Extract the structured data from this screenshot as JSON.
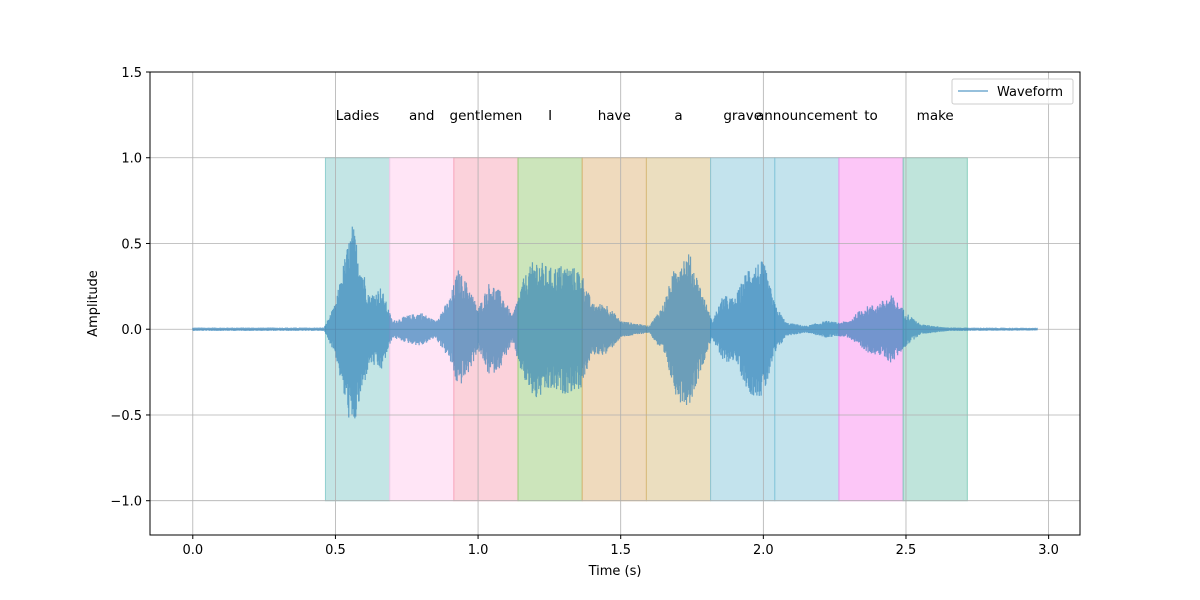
{
  "chart_data": {
    "type": "line",
    "xlabel": "Time (s)",
    "ylabel": "Amplitude",
    "xlim": [
      -0.15,
      3.11
    ],
    "ylim": [
      -1.2,
      1.5
    ],
    "xticks": [
      {
        "value": 0.0,
        "label": "0.0"
      },
      {
        "value": 0.5,
        "label": "0.5"
      },
      {
        "value": 1.0,
        "label": "1.0"
      },
      {
        "value": 1.5,
        "label": "1.5"
      },
      {
        "value": 2.0,
        "label": "2.0"
      },
      {
        "value": 2.5,
        "label": "2.5"
      },
      {
        "value": 3.0,
        "label": "3.0"
      }
    ],
    "yticks": [
      {
        "value": -1.0,
        "label": "−1.0"
      },
      {
        "value": -0.5,
        "label": "−0.5"
      },
      {
        "value": 0.0,
        "label": "0.0"
      },
      {
        "value": 0.5,
        "label": "0.5"
      },
      {
        "value": 1.0,
        "label": "1.0"
      },
      {
        "value": 1.5,
        "label": "1.5"
      }
    ],
    "grid": true,
    "legend": {
      "placement": "upper right",
      "entries": [
        "Waveform"
      ]
    },
    "waveform": {
      "name": "Waveform",
      "color": "#1f77b4",
      "duration": 2.96,
      "envelope": [
        [
          0.0,
          0.01
        ],
        [
          0.46,
          0.01
        ],
        [
          0.5,
          0.15
        ],
        [
          0.53,
          0.4
        ],
        [
          0.56,
          0.62
        ],
        [
          0.59,
          0.4
        ],
        [
          0.62,
          0.2
        ],
        [
          0.66,
          0.25
        ],
        [
          0.7,
          0.05
        ],
        [
          0.75,
          0.08
        ],
        [
          0.8,
          0.1
        ],
        [
          0.85,
          0.05
        ],
        [
          0.9,
          0.18
        ],
        [
          0.93,
          0.35
        ],
        [
          0.97,
          0.25
        ],
        [
          1.0,
          0.12
        ],
        [
          1.04,
          0.28
        ],
        [
          1.08,
          0.22
        ],
        [
          1.12,
          0.08
        ],
        [
          1.16,
          0.3
        ],
        [
          1.2,
          0.42
        ],
        [
          1.25,
          0.36
        ],
        [
          1.3,
          0.38
        ],
        [
          1.36,
          0.35
        ],
        [
          1.4,
          0.15
        ],
        [
          1.45,
          0.15
        ],
        [
          1.5,
          0.05
        ],
        [
          1.6,
          0.02
        ],
        [
          1.65,
          0.15
        ],
        [
          1.7,
          0.42
        ],
        [
          1.74,
          0.45
        ],
        [
          1.78,
          0.25
        ],
        [
          1.82,
          0.05
        ],
        [
          1.86,
          0.2
        ],
        [
          1.9,
          0.18
        ],
        [
          1.95,
          0.38
        ],
        [
          2.0,
          0.4
        ],
        [
          2.04,
          0.15
        ],
        [
          2.08,
          0.04
        ],
        [
          2.15,
          0.02
        ],
        [
          2.22,
          0.05
        ],
        [
          2.26,
          0.04
        ],
        [
          2.3,
          0.05
        ],
        [
          2.35,
          0.13
        ],
        [
          2.4,
          0.15
        ],
        [
          2.45,
          0.2
        ],
        [
          2.5,
          0.1
        ],
        [
          2.55,
          0.03
        ],
        [
          2.65,
          0.01
        ],
        [
          2.96,
          0.008
        ]
      ]
    },
    "segments": [
      {
        "word": "Ladies",
        "start": 0.465,
        "end": 0.69,
        "color": "#88cccc"
      },
      {
        "word": "and",
        "start": 0.69,
        "end": 0.915,
        "color": "#ffccee"
      },
      {
        "word": "gentlemen",
        "start": 0.915,
        "end": 1.14,
        "color": "#f7a6b8"
      },
      {
        "word": "I",
        "start": 1.14,
        "end": 1.365,
        "color": "#99cc77"
      },
      {
        "word": "have",
        "start": 1.365,
        "end": 1.59,
        "color": "#dfb57b"
      },
      {
        "word": "a",
        "start": 1.59,
        "end": 1.815,
        "color": "#d8bd7f"
      },
      {
        "word": "grave",
        "start": 1.815,
        "end": 2.04,
        "color": "#88c8dc"
      },
      {
        "word": "announcement",
        "start": 2.04,
        "end": 2.265,
        "color": "#88c8dc"
      },
      {
        "word": "to",
        "start": 2.265,
        "end": 2.49,
        "color": "#f98df0"
      },
      {
        "word": "make",
        "start": 2.49,
        "end": 2.715,
        "color": "#80cab8"
      }
    ]
  }
}
